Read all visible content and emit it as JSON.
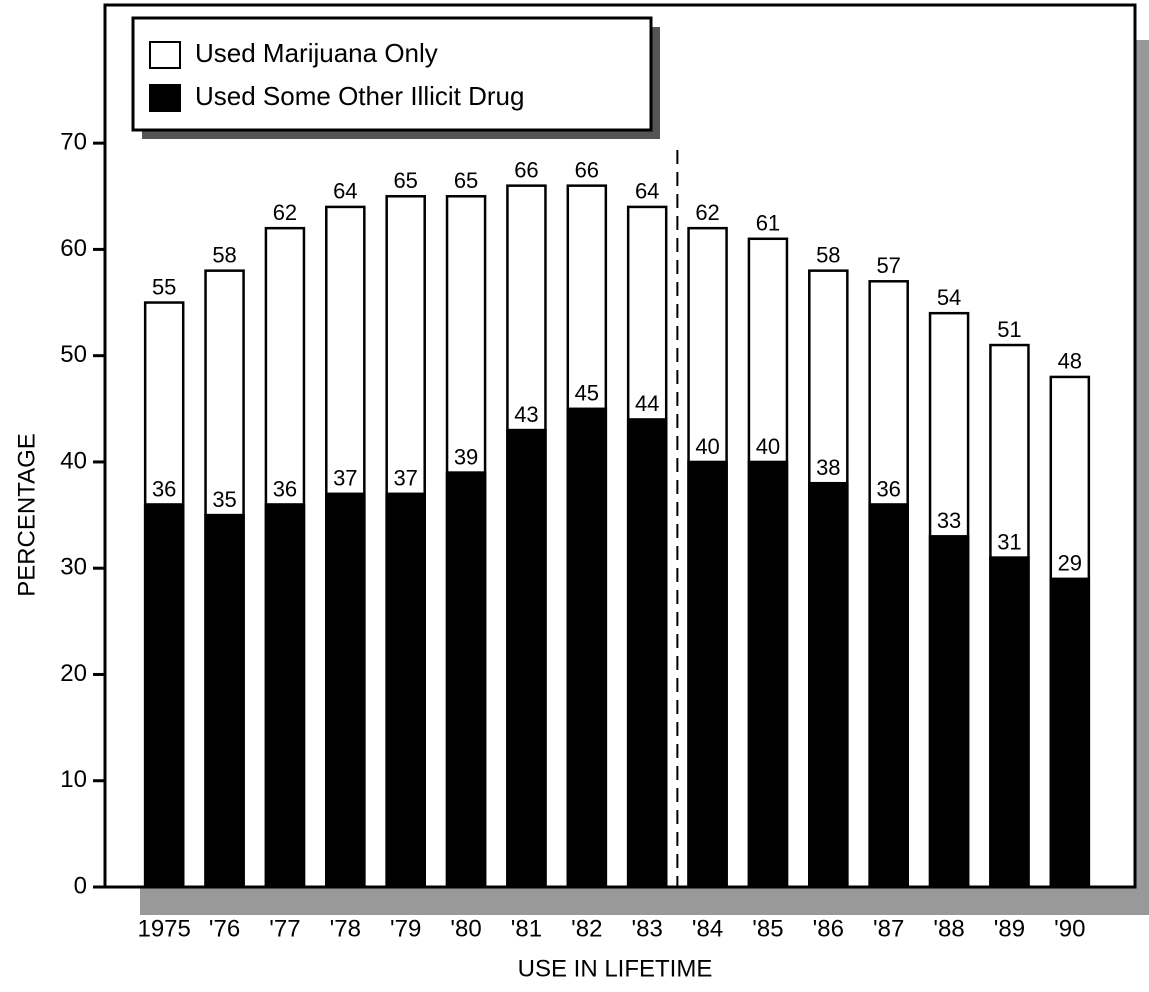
{
  "chart_data": {
    "type": "bar",
    "overlap": true,
    "legend": "top-left",
    "x_label": "USE IN LIFETIME",
    "y_label": "PERCENTAGE",
    "categories": [
      "1975",
      "'76",
      "'77",
      "'78",
      "'79",
      "'80",
      "'81",
      "'82",
      "'83",
      "'84",
      "'85",
      "'86",
      "'87",
      "'88",
      "'89",
      "'90"
    ],
    "series": [
      {
        "name": "Used Marijuana Only",
        "color": "#ffffff",
        "values": [
          55,
          58,
          62,
          64,
          65,
          65,
          66,
          66,
          64,
          62,
          61,
          58,
          57,
          54,
          51,
          48
        ]
      },
      {
        "name": "Used Some Other Illicit Drug",
        "color": "#000000",
        "values": [
          36,
          35,
          36,
          37,
          37,
          39,
          43,
          45,
          44,
          40,
          40,
          38,
          36,
          33,
          31,
          29
        ]
      }
    ],
    "ylim": [
      0,
      83
    ],
    "yticks": [
      0,
      10,
      20,
      30,
      40,
      50,
      60,
      70
    ]
  }
}
